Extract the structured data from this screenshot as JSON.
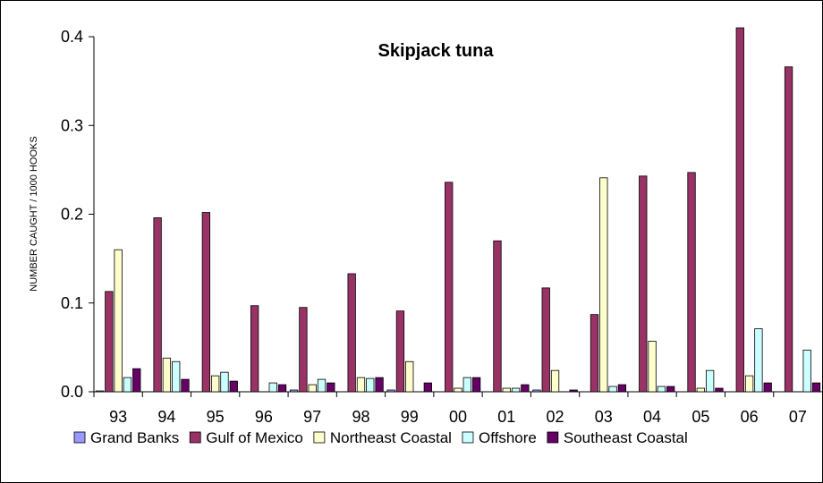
{
  "chart_data": {
    "type": "bar",
    "title": "Skipjack tuna",
    "xlabel": "",
    "ylabel": "NUMBER CAUGHT / 1000 HOOKS",
    "ylim": [
      0,
      0.4
    ],
    "yticks": [
      "0.0",
      "0.1",
      "0.2",
      "0.3",
      "0.4"
    ],
    "grid": false,
    "legend_position": "bottom",
    "categories": [
      "93",
      "94",
      "95",
      "96",
      "97",
      "98",
      "99",
      "00",
      "01",
      "02",
      "03",
      "04",
      "05",
      "06",
      "07"
    ],
    "series": [
      {
        "name": "Grand Banks",
        "color": "#9999FF",
        "values": [
          0.001,
          0,
          0,
          0,
          0.002,
          0,
          0.002,
          0,
          0,
          0.002,
          0,
          0,
          0,
          0,
          0
        ]
      },
      {
        "name": "Gulf of Mexico",
        "color": "#993366",
        "values": [
          0.113,
          0.196,
          0.202,
          0.097,
          0.095,
          0.133,
          0.091,
          0.236,
          0.17,
          0.117,
          0.087,
          0.243,
          0.247,
          0.41,
          0.366
        ]
      },
      {
        "name": "Northeast Coastal",
        "color": "#FFFFCC",
        "values": [
          0.16,
          0.038,
          0.018,
          0,
          0.008,
          0.016,
          0.034,
          0.004,
          0.004,
          0.024,
          0.241,
          0.057,
          0.004,
          0.018,
          0
        ]
      },
      {
        "name": "Offshore",
        "color": "#CCFFFF",
        "values": [
          0.016,
          0.034,
          0.022,
          0.01,
          0.014,
          0.015,
          0,
          0.016,
          0.004,
          0,
          0.006,
          0.006,
          0.024,
          0.071,
          0.047
        ]
      },
      {
        "name": "Southeast Coastal",
        "color": "#660066",
        "values": [
          0.026,
          0.014,
          0.012,
          0.008,
          0.01,
          0.016,
          0.01,
          0.016,
          0.008,
          0.002,
          0.008,
          0.006,
          0.004,
          0.01,
          0.01
        ]
      }
    ]
  }
}
